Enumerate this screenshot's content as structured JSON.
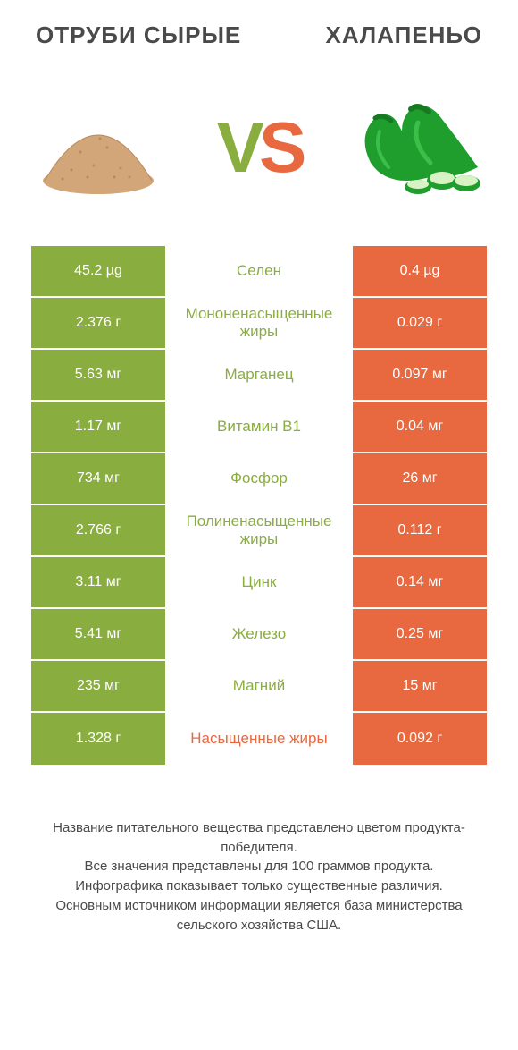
{
  "colors": {
    "green": "#8aad3f",
    "orange": "#e8683f",
    "text": "#4a4a4a",
    "bg": "#ffffff",
    "bran_fill": "#d2a679",
    "bran_stroke": "#b88a5a",
    "pepper_fill": "#1f9e2e",
    "pepper_dark": "#167a22",
    "pepper_light": "#4fd65b"
  },
  "header": {
    "left_title": "ОТРУБИ СЫРЫЕ",
    "right_title": "ХАЛАПЕНЬО"
  },
  "vs": {
    "v": "V",
    "s": "S"
  },
  "rows": [
    {
      "left": "45.2 µg",
      "label": "Селен",
      "right": "0.4 µg",
      "winner": "left"
    },
    {
      "left": "2.376 г",
      "label": "Мононенасыщенные жиры",
      "right": "0.029 г",
      "winner": "left"
    },
    {
      "left": "5.63 мг",
      "label": "Марганец",
      "right": "0.097 мг",
      "winner": "left"
    },
    {
      "left": "1.17 мг",
      "label": "Витамин B1",
      "right": "0.04 мг",
      "winner": "left"
    },
    {
      "left": "734 мг",
      "label": "Фосфор",
      "right": "26 мг",
      "winner": "left"
    },
    {
      "left": "2.766 г",
      "label": "Полиненасыщенные жиры",
      "right": "0.112 г",
      "winner": "left"
    },
    {
      "left": "3.11 мг",
      "label": "Цинк",
      "right": "0.14 мг",
      "winner": "left"
    },
    {
      "left": "5.41 мг",
      "label": "Железо",
      "right": "0.25 мг",
      "winner": "left"
    },
    {
      "left": "235 мг",
      "label": "Магний",
      "right": "15 мг",
      "winner": "left"
    },
    {
      "left": "1.328 г",
      "label": "Насыщенные жиры",
      "right": "0.092 г",
      "winner": "right"
    }
  ],
  "footer": {
    "line1": "Название питательного вещества представлено цветом продукта-победителя.",
    "line2": "Все значения представлены для 100 граммов продукта.",
    "line3": "Инфографика показывает только существенные различия.",
    "line4": "Основным источником информации является база министерства сельского хозяйства США."
  },
  "typography": {
    "title_fontsize": 26,
    "vs_fontsize": 80,
    "cell_fontsize": 16,
    "label_fontsize": 17,
    "footer_fontsize": 15
  }
}
